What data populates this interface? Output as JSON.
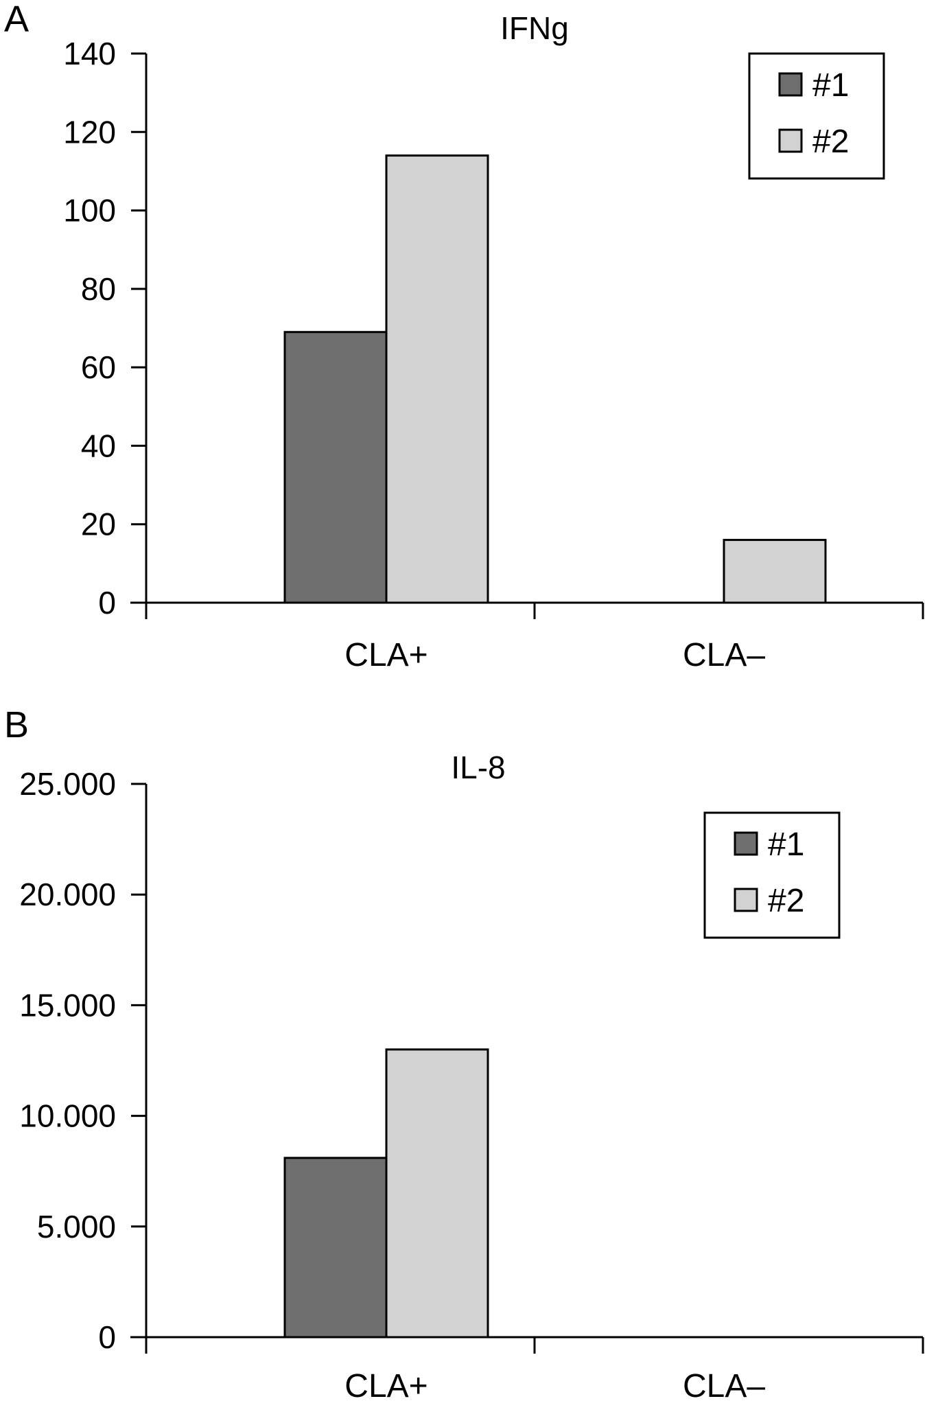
{
  "chart_data": [
    {
      "panel": "A",
      "type": "bar",
      "title": "IFNg",
      "categories": [
        "CLA+",
        "CLA–"
      ],
      "series": [
        {
          "name": "#1",
          "values": [
            69,
            0
          ],
          "color": "#6f6f6f"
        },
        {
          "name": "#2",
          "values": [
            114,
            16
          ],
          "color": "#d2d2d2"
        }
      ],
      "ylim": [
        0,
        140
      ],
      "yticks": [
        0,
        20,
        40,
        60,
        80,
        100,
        120,
        140
      ],
      "ytick_labels": [
        "0",
        "20",
        "40",
        "60",
        "80",
        "100",
        "120",
        "140"
      ],
      "xlabel": "",
      "ylabel": "",
      "legend": "top-right",
      "grid": false
    },
    {
      "panel": "B",
      "type": "bar",
      "title": "IL-8",
      "categories": [
        "CLA+",
        "CLA–"
      ],
      "series": [
        {
          "name": "#1",
          "values": [
            8100,
            0
          ],
          "color": "#6f6f6f"
        },
        {
          "name": "#2",
          "values": [
            13000,
            0
          ],
          "color": "#d2d2d2"
        }
      ],
      "ylim": [
        0,
        25000
      ],
      "yticks": [
        0,
        5000,
        10000,
        15000,
        20000,
        25000
      ],
      "ytick_labels": [
        "0",
        "5.000",
        "10.000",
        "15.000",
        "20.000",
        "25.000"
      ],
      "xlabel": "",
      "ylabel": "",
      "legend": "top-right",
      "grid": false
    }
  ]
}
